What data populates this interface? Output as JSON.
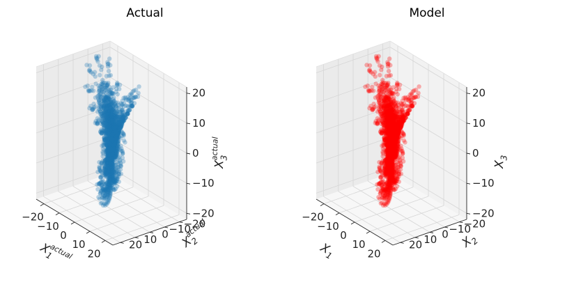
{
  "chart_data": [
    {
      "type": "scatter",
      "projection": "3d",
      "title": "Actual",
      "color": "#1f77b4",
      "xlabel": {
        "base": "X",
        "sub": "1",
        "sup": "actual"
      },
      "ylabel": {
        "base": "X",
        "sub": "2",
        "sup": "actual"
      },
      "zlabel": {
        "base": "X",
        "sub": "3",
        "sup": "actual"
      },
      "xlim": [
        -25,
        25
      ],
      "ylim": [
        -25,
        25
      ],
      "zlim": [
        -22,
        22
      ],
      "xticks": [
        "−20",
        "−10",
        "0",
        "10",
        "20"
      ],
      "yticks": [
        "−20",
        "−10",
        "0",
        "10",
        "20"
      ],
      "zticks": [
        "−20",
        "−10",
        "0",
        "10",
        "20"
      ],
      "grid": true,
      "point_count": 2400
    },
    {
      "type": "scatter",
      "projection": "3d",
      "title": "Model",
      "color": "#ff0000",
      "xlabel": {
        "base": "X",
        "sub": "1",
        "sup": ""
      },
      "ylabel": {
        "base": "X",
        "sub": "2",
        "sup": ""
      },
      "zlabel": {
        "base": "X",
        "sub": "3",
        "sup": ""
      },
      "xlim": [
        -25,
        25
      ],
      "ylim": [
        -25,
        25
      ],
      "zlim": [
        -22,
        22
      ],
      "xticks": [
        "−20",
        "−10",
        "0",
        "10",
        "20"
      ],
      "yticks": [
        "−20",
        "−10",
        "0",
        "10",
        "20"
      ],
      "zticks": [
        "−20",
        "−10",
        "0",
        "10",
        "20"
      ],
      "grid": true,
      "point_count": 2400
    }
  ]
}
